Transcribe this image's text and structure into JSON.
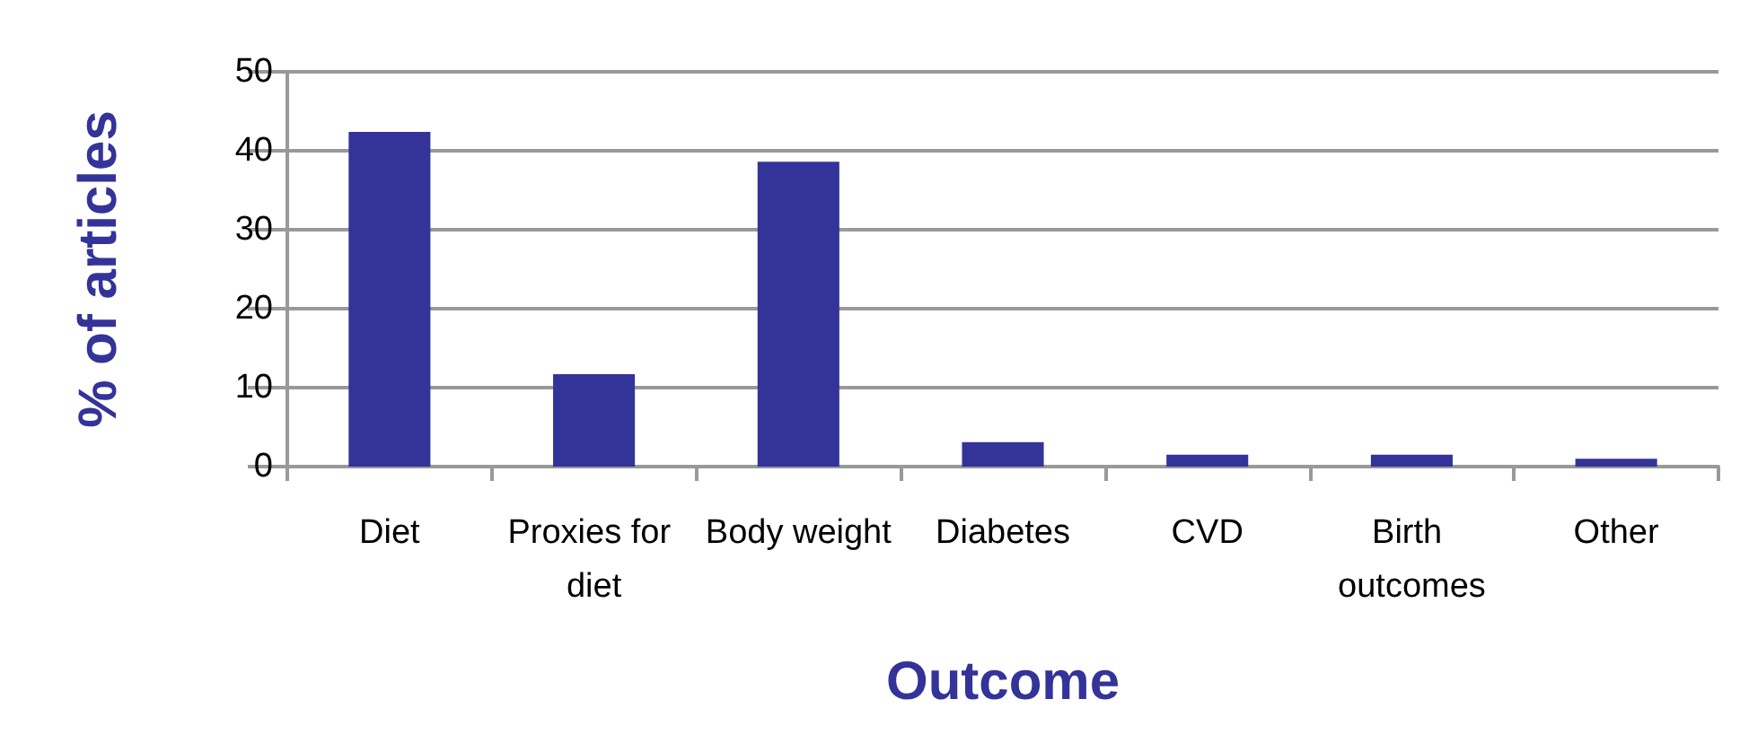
{
  "chart_data": {
    "type": "bar",
    "xlabel": "Outcome",
    "ylabel": "% of articles",
    "categories": [
      "Diet",
      "Proxies for diet",
      "Body weight",
      "Diabetes",
      "CVD",
      "Birth outcomes",
      "Other"
    ],
    "values": [
      42.4,
      11.7,
      38.6,
      3.1,
      1.5,
      1.5,
      1.0
    ],
    "color": "#333399",
    "ylim": [
      0,
      50
    ],
    "yticks": [
      0,
      10,
      20,
      30,
      40,
      50
    ],
    "grid": "y"
  }
}
